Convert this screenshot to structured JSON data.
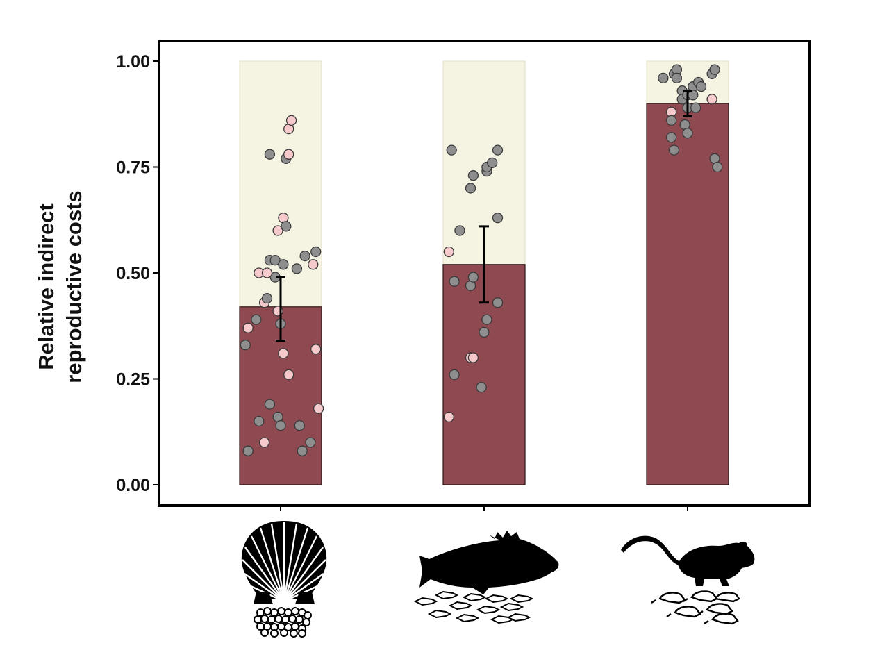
{
  "chart_data": {
    "type": "bar",
    "title": "",
    "ylabel_lines": [
      "Relative indirect",
      "reproductive costs"
    ],
    "xlabel": "",
    "ylim": [
      0,
      1
    ],
    "ytick_labels": [
      "0.00",
      "0.25",
      "0.50",
      "0.75",
      "1.00"
    ],
    "categories": [
      "scallop",
      "fish",
      "rodent"
    ],
    "category_icons": [
      "scallop-with-eggs-icon",
      "fish-with-fry-icon",
      "rodent-with-pups-icon"
    ],
    "values": [
      0.42,
      0.52,
      0.9
    ],
    "error_bars": [
      [
        0.34,
        0.49
      ],
      [
        0.43,
        0.61
      ],
      [
        0.87,
        0.93
      ]
    ],
    "background_value": 1.0,
    "colors": {
      "bar": "#8f4a51",
      "bar_background": "#f5f3e2",
      "point_gray": "#8e8e8e",
      "point_pink": "#f6c9cc",
      "frame": "#000000"
    },
    "points": [
      [
        {
          "dx": -0.12,
          "y": 0.08,
          "c": "gray"
        },
        {
          "dx": -0.06,
          "y": 0.1,
          "c": "pink"
        },
        {
          "dx": -0.08,
          "y": 0.15,
          "c": "gray"
        },
        {
          "dx": -0.04,
          "y": 0.19,
          "c": "gray"
        },
        {
          "dx": -0.13,
          "y": 0.33,
          "c": "gray"
        },
        {
          "dx": -0.12,
          "y": 0.37,
          "c": "pink"
        },
        {
          "dx": -0.09,
          "y": 0.39,
          "c": "gray"
        },
        {
          "dx": -0.06,
          "y": 0.43,
          "c": "pink"
        },
        {
          "dx": -0.05,
          "y": 0.44,
          "c": "gray"
        },
        {
          "dx": -0.02,
          "y": 0.49,
          "c": "gray"
        },
        {
          "dx": -0.08,
          "y": 0.5,
          "c": "pink"
        },
        {
          "dx": -0.05,
          "y": 0.5,
          "c": "pink"
        },
        {
          "dx": -0.04,
          "y": 0.53,
          "c": "gray"
        },
        {
          "dx": -0.02,
          "y": 0.53,
          "c": "gray"
        },
        {
          "dx": -0.01,
          "y": 0.16,
          "c": "gray"
        },
        {
          "dx": 0.0,
          "y": 0.14,
          "c": "gray"
        },
        {
          "dx": 0.01,
          "y": 0.31,
          "c": "pink"
        },
        {
          "dx": 0.03,
          "y": 0.26,
          "c": "pink"
        },
        {
          "dx": 0.0,
          "y": 0.38,
          "c": "gray"
        },
        {
          "dx": -0.01,
          "y": 0.41,
          "c": "pink"
        },
        {
          "dx": 0.01,
          "y": 0.52,
          "c": "gray"
        },
        {
          "dx": -0.01,
          "y": 0.6,
          "c": "pink"
        },
        {
          "dx": 0.01,
          "y": 0.63,
          "c": "pink"
        },
        {
          "dx": 0.02,
          "y": 0.61,
          "c": "gray"
        },
        {
          "dx": 0.02,
          "y": 0.77,
          "c": "gray"
        },
        {
          "dx": 0.03,
          "y": 0.78,
          "c": "pink"
        },
        {
          "dx": -0.04,
          "y": 0.78,
          "c": "gray"
        },
        {
          "dx": 0.03,
          "y": 0.84,
          "c": "pink"
        },
        {
          "dx": 0.04,
          "y": 0.86,
          "c": "pink"
        },
        {
          "dx": 0.06,
          "y": 0.51,
          "c": "gray"
        },
        {
          "dx": 0.07,
          "y": 0.14,
          "c": "gray"
        },
        {
          "dx": 0.08,
          "y": 0.08,
          "c": "gray"
        },
        {
          "dx": 0.09,
          "y": 0.54,
          "c": "gray"
        },
        {
          "dx": 0.11,
          "y": 0.1,
          "c": "gray"
        },
        {
          "dx": 0.12,
          "y": 0.52,
          "c": "pink"
        },
        {
          "dx": 0.13,
          "y": 0.55,
          "c": "gray"
        },
        {
          "dx": 0.13,
          "y": 0.32,
          "c": "pink"
        },
        {
          "dx": 0.14,
          "y": 0.18,
          "c": "pink"
        }
      ],
      [
        {
          "dx": -0.13,
          "y": 0.16,
          "c": "pink"
        },
        {
          "dx": -0.13,
          "y": 0.55,
          "c": "pink"
        },
        {
          "dx": -0.11,
          "y": 0.48,
          "c": "gray"
        },
        {
          "dx": -0.11,
          "y": 0.26,
          "c": "gray"
        },
        {
          "dx": -0.12,
          "y": 0.79,
          "c": "gray"
        },
        {
          "dx": -0.09,
          "y": 0.6,
          "c": "gray"
        },
        {
          "dx": -0.05,
          "y": 0.3,
          "c": "pink"
        },
        {
          "dx": -0.04,
          "y": 0.3,
          "c": "pink"
        },
        {
          "dx": -0.05,
          "y": 0.47,
          "c": "gray"
        },
        {
          "dx": -0.04,
          "y": 0.49,
          "c": "gray"
        },
        {
          "dx": -0.05,
          "y": 0.7,
          "c": "gray"
        },
        {
          "dx": -0.04,
          "y": 0.73,
          "c": "gray"
        },
        {
          "dx": -0.01,
          "y": 0.23,
          "c": "gray"
        },
        {
          "dx": 0.0,
          "y": 0.36,
          "c": "gray"
        },
        {
          "dx": 0.01,
          "y": 0.39,
          "c": "gray"
        },
        {
          "dx": 0.01,
          "y": 0.74,
          "c": "gray"
        },
        {
          "dx": 0.01,
          "y": 0.75,
          "c": "gray"
        },
        {
          "dx": 0.03,
          "y": 0.76,
          "c": "gray"
        },
        {
          "dx": 0.05,
          "y": 0.79,
          "c": "gray"
        },
        {
          "dx": 0.05,
          "y": 0.63,
          "c": "gray"
        },
        {
          "dx": 0.05,
          "y": 0.43,
          "c": "gray"
        }
      ],
      [
        {
          "dx": -0.09,
          "y": 0.96,
          "c": "gray"
        },
        {
          "dx": -0.06,
          "y": 0.88,
          "c": "pink"
        },
        {
          "dx": -0.06,
          "y": 0.86,
          "c": "gray"
        },
        {
          "dx": -0.06,
          "y": 0.82,
          "c": "gray"
        },
        {
          "dx": -0.05,
          "y": 0.79,
          "c": "gray"
        },
        {
          "dx": -0.05,
          "y": 0.97,
          "c": "gray"
        },
        {
          "dx": -0.04,
          "y": 0.98,
          "c": "gray"
        },
        {
          "dx": -0.04,
          "y": 0.96,
          "c": "gray"
        },
        {
          "dx": -0.02,
          "y": 0.93,
          "c": "gray"
        },
        {
          "dx": -0.02,
          "y": 0.91,
          "c": "gray"
        },
        {
          "dx": -0.01,
          "y": 0.85,
          "c": "gray"
        },
        {
          "dx": 0.0,
          "y": 0.83,
          "c": "gray"
        },
        {
          "dx": 0.0,
          "y": 0.92,
          "c": "gray"
        },
        {
          "dx": 0.0,
          "y": 0.89,
          "c": "gray"
        },
        {
          "dx": 0.02,
          "y": 0.94,
          "c": "gray"
        },
        {
          "dx": 0.02,
          "y": 0.92,
          "c": "gray"
        },
        {
          "dx": 0.03,
          "y": 0.89,
          "c": "gray"
        },
        {
          "dx": 0.04,
          "y": 0.95,
          "c": "gray"
        },
        {
          "dx": 0.05,
          "y": 0.94,
          "c": "gray"
        },
        {
          "dx": 0.09,
          "y": 0.97,
          "c": "gray"
        },
        {
          "dx": 0.1,
          "y": 0.98,
          "c": "gray"
        },
        {
          "dx": 0.09,
          "y": 0.91,
          "c": "pink"
        },
        {
          "dx": 0.1,
          "y": 0.77,
          "c": "gray"
        },
        {
          "dx": 0.11,
          "y": 0.75,
          "c": "gray"
        }
      ]
    ]
  }
}
